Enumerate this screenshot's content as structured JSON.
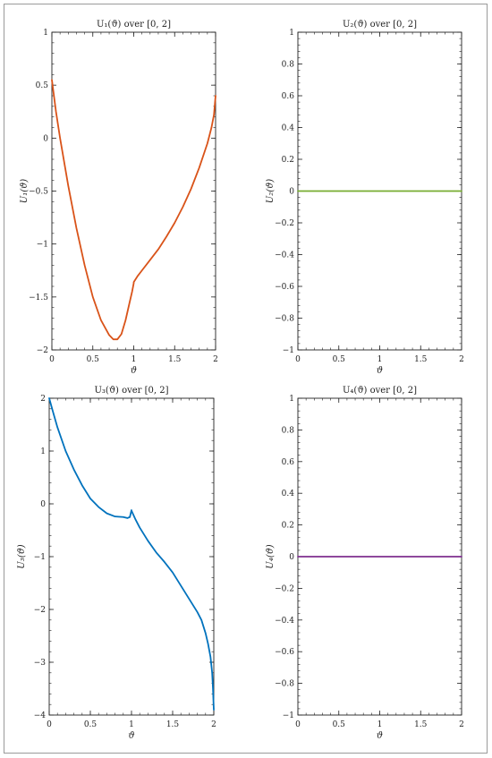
{
  "chart_data": [
    {
      "type": "line",
      "title": "U₁(ϑ) over [0, 2]",
      "xlabel": "ϑ",
      "ylabel": "U₁(ϑ)",
      "xlim": [
        0,
        2
      ],
      "ylim": [
        -2,
        1
      ],
      "xticks": [
        0,
        0.5,
        1,
        1.5,
        2
      ],
      "yticks": [
        -2,
        -1.5,
        -1,
        -0.5,
        0,
        0.5,
        1
      ],
      "xtick_labels": [
        "0",
        "0.5",
        "1",
        "1.5",
        "2"
      ],
      "ytick_labels": [
        "−2",
        "−1.5",
        "−1",
        "−0.5",
        "0",
        "0.5",
        "1"
      ],
      "series": [
        {
          "color": "#d95319",
          "x": [
            0,
            0.05,
            0.1,
            0.2,
            0.3,
            0.4,
            0.5,
            0.6,
            0.7,
            0.75,
            0.8,
            0.85,
            0.9,
            0.95,
            0.98,
            1.0,
            1.0,
            1.05,
            1.1,
            1.2,
            1.3,
            1.4,
            1.5,
            1.6,
            1.7,
            1.8,
            1.9,
            1.95,
            1.98,
            2.0
          ],
          "y": [
            0.55,
            0.25,
            0.0,
            -0.45,
            -0.85,
            -1.2,
            -1.5,
            -1.72,
            -1.86,
            -1.9,
            -1.9,
            -1.85,
            -1.72,
            -1.55,
            -1.45,
            -1.37,
            -1.36,
            -1.3,
            -1.25,
            -1.15,
            -1.05,
            -0.93,
            -0.8,
            -0.65,
            -0.48,
            -0.28,
            -0.05,
            0.1,
            0.22,
            0.4
          ]
        }
      ]
    },
    {
      "type": "line",
      "title": "U₂(ϑ) over [0, 2]",
      "xlabel": "ϑ",
      "ylabel": "U₂(ϑ)",
      "xlim": [
        0,
        2
      ],
      "ylim": [
        -1,
        1
      ],
      "xticks": [
        0,
        0.5,
        1,
        1.5,
        2
      ],
      "yticks": [
        -1,
        -0.8,
        -0.6,
        -0.4,
        -0.2,
        0,
        0.2,
        0.4,
        0.6,
        0.8,
        1
      ],
      "xtick_labels": [
        "0",
        "0.5",
        "1",
        "1.5",
        "2"
      ],
      "ytick_labels": [
        "−1",
        "−0.8",
        "−0.6",
        "−0.4",
        "−0.2",
        "0",
        "0.2",
        "0.4",
        "0.6",
        "0.8",
        "1"
      ],
      "series": [
        {
          "color": "#77ac30",
          "x": [
            0,
            2
          ],
          "y": [
            0,
            0
          ]
        }
      ]
    },
    {
      "type": "line",
      "title": "U₃(ϑ) over [0, 2]",
      "xlabel": "ϑ",
      "ylabel": "U₃(ϑ)",
      "xlim": [
        0,
        2
      ],
      "ylim": [
        -4,
        2
      ],
      "xticks": [
        0,
        0.5,
        1,
        1.5,
        2
      ],
      "yticks": [
        -4,
        -3,
        -2,
        -1,
        0,
        1,
        2
      ],
      "xtick_labels": [
        "0",
        "0.5",
        "1",
        "1.5",
        "2"
      ],
      "ytick_labels": [
        "−4",
        "−3",
        "−2",
        "−1",
        "0",
        "1",
        "2"
      ],
      "series": [
        {
          "color": "#0072bd",
          "x": [
            0,
            0.05,
            0.1,
            0.2,
            0.3,
            0.4,
            0.5,
            0.6,
            0.7,
            0.8,
            0.9,
            0.95,
            0.98,
            1.0,
            1.0,
            1.05,
            1.1,
            1.2,
            1.3,
            1.4,
            1.5,
            1.6,
            1.7,
            1.8,
            1.85,
            1.9,
            1.93,
            1.96,
            1.98,
            1.99,
            2.0
          ],
          "y": [
            2.0,
            1.72,
            1.45,
            1.0,
            0.65,
            0.35,
            0.1,
            -0.06,
            -0.18,
            -0.24,
            -0.25,
            -0.27,
            -0.25,
            -0.12,
            -0.13,
            -0.3,
            -0.45,
            -0.7,
            -0.92,
            -1.1,
            -1.3,
            -1.55,
            -1.8,
            -2.05,
            -2.2,
            -2.45,
            -2.65,
            -2.9,
            -3.2,
            -3.5,
            -3.9
          ]
        }
      ]
    },
    {
      "type": "line",
      "title": "U₄(ϑ) over [0, 2]",
      "xlabel": "ϑ",
      "ylabel": "U₄(ϑ)",
      "xlim": [
        0,
        2
      ],
      "ylim": [
        -1,
        1
      ],
      "xticks": [
        0,
        0.5,
        1,
        1.5,
        2
      ],
      "yticks": [
        -1,
        -0.8,
        -0.6,
        -0.4,
        -0.2,
        0,
        0.2,
        0.4,
        0.6,
        0.8,
        1
      ],
      "xtick_labels": [
        "0",
        "0.5",
        "1",
        "1.5",
        "2"
      ],
      "ytick_labels": [
        "−1",
        "−0.8",
        "−0.6",
        "−0.4",
        "−0.2",
        "0",
        "0.2",
        "0.4",
        "0.6",
        "0.8",
        "1"
      ],
      "series": [
        {
          "color": "#7e2f8e",
          "x": [
            0,
            2
          ],
          "y": [
            0,
            0
          ]
        }
      ]
    }
  ]
}
